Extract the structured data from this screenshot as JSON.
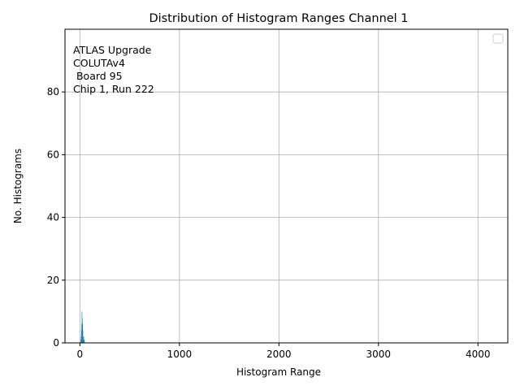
{
  "chart_data": {
    "type": "bar",
    "title": "Distribution of Histogram Ranges Channel 1",
    "xlabel": "Histogram Range",
    "ylabel": "No. Histograms",
    "xlim": [
      -150,
      4300
    ],
    "ylim": [
      0,
      100
    ],
    "xticks": [
      0,
      1000,
      2000,
      3000,
      4000
    ],
    "yticks": [
      0,
      20,
      40,
      60,
      80
    ],
    "grid": true,
    "legend": "top-right",
    "annotation_lines": [
      "ATLAS Upgrade",
      "COLUTAv4",
      " Board 95",
      "Chip 1, Run 222"
    ],
    "bar_color": "#1f77b4",
    "series": [
      {
        "x": [
          8,
          11,
          14,
          17,
          20,
          23,
          26,
          29,
          32,
          35,
          38,
          41,
          44
        ],
        "values": [
          1,
          2,
          4,
          6,
          10,
          8,
          6,
          4,
          2,
          1,
          2,
          1,
          1
        ]
      }
    ]
  }
}
